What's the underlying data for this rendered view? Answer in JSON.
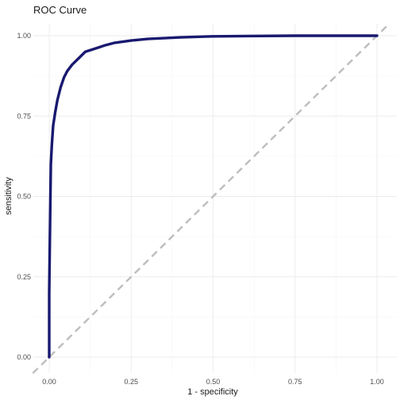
{
  "chart_data": {
    "type": "line",
    "title": "ROC Curve",
    "xlabel": "1 - specificity",
    "ylabel": "sensitivity",
    "xlim": [
      0,
      1
    ],
    "ylim": [
      0,
      1
    ],
    "x_ticks": [
      "0.00",
      "0.25",
      "0.50",
      "0.75",
      "1.00"
    ],
    "y_ticks": [
      "0.00",
      "0.25",
      "0.50",
      "0.75",
      "1.00"
    ],
    "grid": true,
    "colors": {
      "curve": "#191970",
      "reference": "#bdbdbd"
    },
    "series": [
      {
        "x": [
          0,
          0,
          0.003,
          0.005,
          0.008,
          0.012,
          0.018,
          0.025,
          0.035,
          0.045,
          0.055,
          0.07,
          0.09,
          0.11,
          0.14,
          0.17,
          0.2,
          0.25,
          0.3,
          0.4,
          0.5,
          0.6,
          0.75,
          0.9,
          1.0
        ],
        "y": [
          0,
          0.2,
          0.45,
          0.6,
          0.66,
          0.72,
          0.76,
          0.8,
          0.84,
          0.87,
          0.89,
          0.91,
          0.93,
          0.95,
          0.96,
          0.97,
          0.978,
          0.985,
          0.99,
          0.995,
          0.998,
          0.999,
          1.0,
          1.0,
          1.0
        ]
      }
    ],
    "reference_line": {
      "x": [
        0,
        1
      ],
      "y": [
        0,
        1
      ],
      "style": "dashed"
    }
  }
}
